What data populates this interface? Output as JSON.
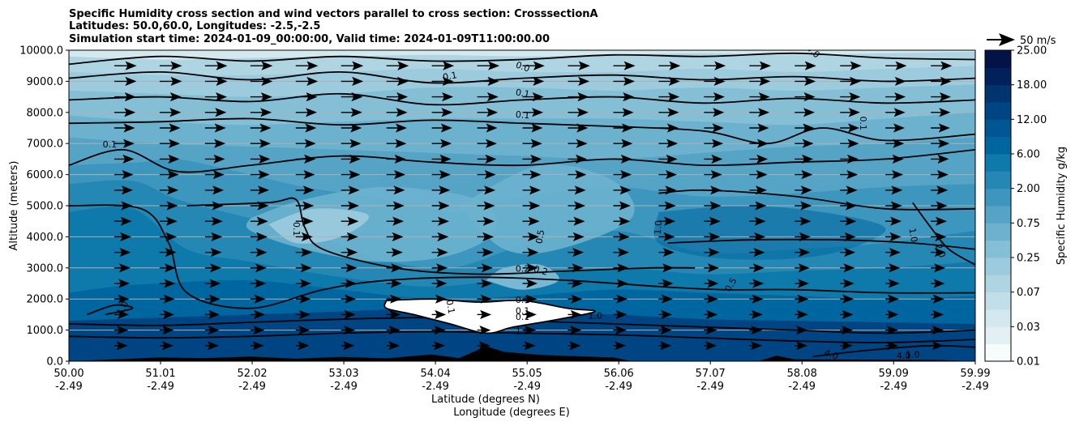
{
  "chart_data": {
    "type": "contour",
    "title_lines": [
      "Specific Humidity cross section and wind vectors parallel to cross section: CrosssectionA",
      "Latitudes: 50.0,60.0, Longitudes: -2.5,-2.5",
      "Simulation start time: 2024-01-09_00:00:00, Valid time: 2024-01-09T11:00:00.00"
    ],
    "ylabel": "Altitude (meters)",
    "xlabel_lat": "Latitude (degrees N)",
    "xlabel_lon": "Longitude (degrees E)",
    "ylim": [
      0,
      10000
    ],
    "yticks": [
      "0.0",
      "1000.0",
      "2000.0",
      "3000.0",
      "4000.0",
      "5000.0",
      "6000.0",
      "7000.0",
      "8000.0",
      "9000.0",
      "10000.0"
    ],
    "xlim": [
      50.0,
      59.99
    ],
    "xticks": [
      {
        "lat": "50.00",
        "lon": "-2.49"
      },
      {
        "lat": "51.01",
        "lon": "-2.49"
      },
      {
        "lat": "52.02",
        "lon": "-2.49"
      },
      {
        "lat": "53.03",
        "lon": "-2.49"
      },
      {
        "lat": "54.04",
        "lon": "-2.49"
      },
      {
        "lat": "55.05",
        "lon": "-2.49"
      },
      {
        "lat": "56.06",
        "lon": "-2.49"
      },
      {
        "lat": "57.07",
        "lon": "-2.49"
      },
      {
        "lat": "58.08",
        "lon": "-2.49"
      },
      {
        "lat": "59.09",
        "lon": "-2.49"
      },
      {
        "lat": "59.99",
        "lon": "-2.49"
      }
    ],
    "horizontal_grid": true,
    "colorbar": {
      "label": "Specific Humidity g/kg",
      "tick_labels": [
        "0.01",
        "0.03",
        "0.07",
        "0.25",
        "0.75",
        "2.00",
        "6.00",
        "12.00",
        "18.00",
        "25.00"
      ],
      "colors": [
        "#f7fcfd",
        "#e4eff3",
        "#d3e8ef",
        "#c2dfe9",
        "#afd4e2",
        "#9ccbde",
        "#84bfd6",
        "#6cb2ce",
        "#55a4c6",
        "#3d96bd",
        "#2588b4",
        "#0e79ab",
        "#0066a0",
        "#005692",
        "#004583",
        "#00346f",
        "#00215a",
        "#031348"
      ],
      "value_levels": [
        0.01,
        0.02,
        0.03,
        0.05,
        0.07,
        0.1,
        0.15,
        0.2,
        0.25,
        0.35,
        0.5,
        0.75,
        1.0,
        1.5,
        2.0,
        4.0,
        6.0,
        9.0,
        12.0,
        15.0,
        18.0,
        25.0
      ]
    },
    "wind_key": {
      "label": "50 m/s",
      "speed": 50
    },
    "contour_labels": [
      {
        "text": "0.0",
        "lat": 55.0,
        "alt": 9450,
        "rot": 20
      },
      {
        "text": "0.0",
        "lat": 58.2,
        "alt": 9950,
        "rot": 45
      },
      {
        "text": "0.1",
        "lat": 54.2,
        "alt": 9150,
        "rot": -10
      },
      {
        "text": "0.1",
        "lat": 55.0,
        "alt": 8600,
        "rot": 10
      },
      {
        "text": "0.1",
        "lat": 55.0,
        "alt": 7900,
        "rot": 5
      },
      {
        "text": "0.1",
        "lat": 58.75,
        "alt": 7650,
        "rot": 90
      },
      {
        "text": "0.1",
        "lat": 50.45,
        "alt": 6950,
        "rot": 0
      },
      {
        "text": "0.1",
        "lat": 52.5,
        "alt": 4250,
        "rot": 90
      },
      {
        "text": "0.5",
        "lat": 55.2,
        "alt": 4000,
        "rot": -80
      },
      {
        "text": "1.0",
        "lat": 56.5,
        "alt": 4300,
        "rot": -85
      },
      {
        "text": "1.0",
        "lat": 59.3,
        "alt": 4050,
        "rot": 80
      },
      {
        "text": "2.0",
        "lat": 59.6,
        "alt": 3550,
        "rot": 70
      },
      {
        "text": "0.2",
        "lat": 55.0,
        "alt": 2950,
        "rot": 0
      },
      {
        "text": "0.2",
        "lat": 55.2,
        "alt": 2900,
        "rot": 15
      },
      {
        "text": "0.5",
        "lat": 57.3,
        "alt": 2450,
        "rot": -60
      },
      {
        "text": "1.0",
        "lat": 50.6,
        "alt": 1700,
        "rot": -60
      },
      {
        "text": "0.1",
        "lat": 55.0,
        "alt": 1950,
        "rot": 0
      },
      {
        "text": "0.1",
        "lat": 55.0,
        "alt": 1600,
        "rot": 0
      },
      {
        "text": "0.1",
        "lat": 55.0,
        "alt": 1400,
        "rot": 0
      },
      {
        "text": "1.0",
        "lat": 55.0,
        "alt": 950,
        "rot": 0
      },
      {
        "text": "1.0",
        "lat": 55.8,
        "alt": 1450,
        "rot": 0
      },
      {
        "text": "0.1",
        "lat": 54.2,
        "alt": 1750,
        "rot": 80
      },
      {
        "text": "4.0",
        "lat": 58.4,
        "alt": 200,
        "rot": 20
      },
      {
        "text": "4.0",
        "lat": 59.2,
        "alt": 150,
        "rot": 0
      },
      {
        "text": "1.0",
        "lat": 59.3,
        "alt": 200,
        "rot": 0
      }
    ]
  }
}
